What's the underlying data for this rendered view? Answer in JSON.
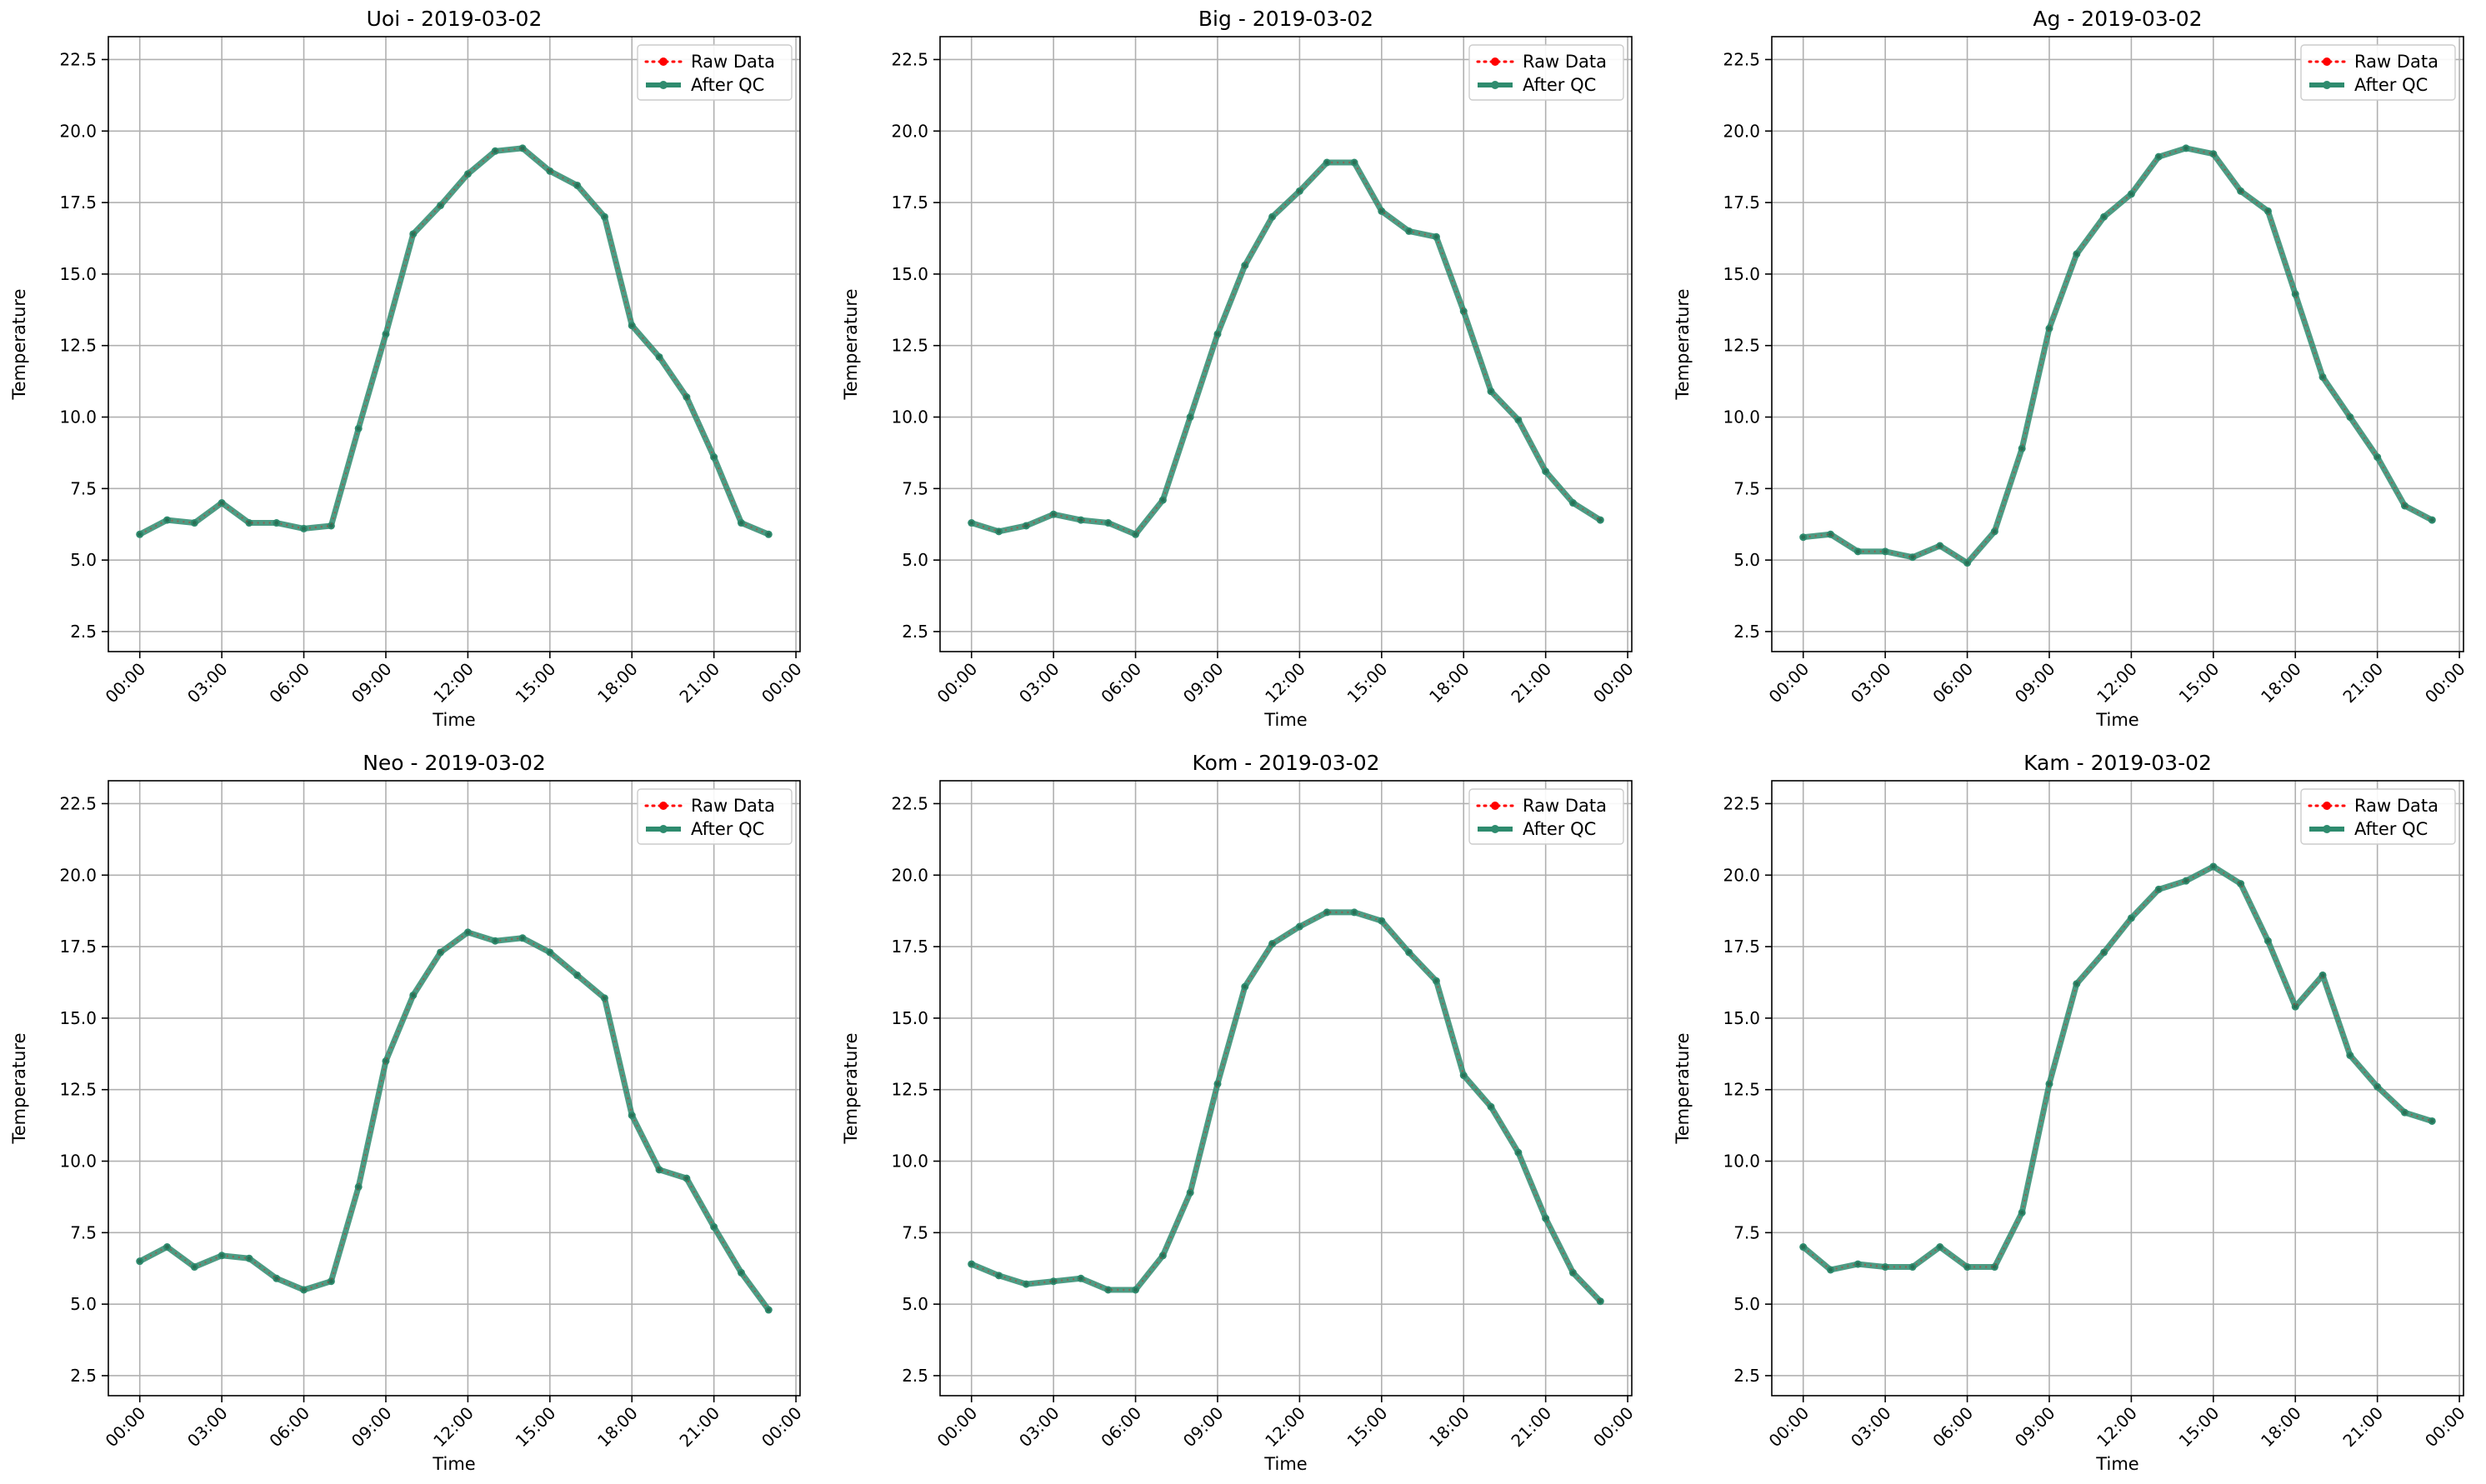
{
  "figure": {
    "background": "#ffffff"
  },
  "style": {
    "raw_color": "#ff0000",
    "qc_color": "#2e8b6e",
    "grid_color": "#b0b0b0"
  },
  "chart_data": [
    {
      "type": "line",
      "title": "Uoi - 2019-03-02",
      "xlabel": "Time",
      "ylabel": "Temperature",
      "ylim": [
        1.8,
        23.3
      ],
      "yticks": [
        "2.5",
        "5.0",
        "7.5",
        "10.0",
        "12.5",
        "15.0",
        "17.5",
        "20.0",
        "22.5"
      ],
      "xticks": [
        "00:00",
        "03:00",
        "06:00",
        "09:00",
        "12:00",
        "15:00",
        "18:00",
        "21:00",
        "00:00"
      ],
      "grid": true,
      "legend": "top-right",
      "x": [
        "00:00",
        "01:00",
        "02:00",
        "03:00",
        "04:00",
        "05:00",
        "06:00",
        "07:00",
        "08:00",
        "09:00",
        "10:00",
        "11:00",
        "12:00",
        "13:00",
        "14:00",
        "15:00",
        "16:00",
        "17:00",
        "18:00",
        "19:00",
        "20:00",
        "21:00",
        "22:00",
        "23:00"
      ],
      "series": [
        {
          "name": "Raw Data",
          "values": [
            5.9,
            6.4,
            6.3,
            7.0,
            6.3,
            6.3,
            6.1,
            6.2,
            9.6,
            12.9,
            16.4,
            17.4,
            18.5,
            19.3,
            19.4,
            18.6,
            18.1,
            17.0,
            13.2,
            12.1,
            10.7,
            8.6,
            6.3,
            5.9
          ]
        },
        {
          "name": "After QC",
          "values": [
            5.9,
            6.4,
            6.3,
            7.0,
            6.3,
            6.3,
            6.1,
            6.2,
            9.6,
            12.9,
            16.4,
            17.4,
            18.5,
            19.3,
            19.4,
            18.6,
            18.1,
            17.0,
            13.2,
            12.1,
            10.7,
            8.6,
            6.3,
            5.9
          ]
        }
      ]
    },
    {
      "type": "line",
      "title": "Big - 2019-03-02",
      "xlabel": "Time",
      "ylabel": "Temperature",
      "ylim": [
        1.8,
        23.3
      ],
      "yticks": [
        "2.5",
        "5.0",
        "7.5",
        "10.0",
        "12.5",
        "15.0",
        "17.5",
        "20.0",
        "22.5"
      ],
      "xticks": [
        "00:00",
        "03:00",
        "06:00",
        "09:00",
        "12:00",
        "15:00",
        "18:00",
        "21:00",
        "00:00"
      ],
      "grid": true,
      "legend": "top-right",
      "x": [
        "00:00",
        "01:00",
        "02:00",
        "03:00",
        "04:00",
        "05:00",
        "06:00",
        "07:00",
        "08:00",
        "09:00",
        "10:00",
        "11:00",
        "12:00",
        "13:00",
        "14:00",
        "15:00",
        "16:00",
        "17:00",
        "18:00",
        "19:00",
        "20:00",
        "21:00",
        "22:00",
        "23:00"
      ],
      "series": [
        {
          "name": "Raw Data",
          "values": [
            6.3,
            6.0,
            6.2,
            6.6,
            6.4,
            6.3,
            5.9,
            7.1,
            10.0,
            12.9,
            15.3,
            17.0,
            17.9,
            18.9,
            18.9,
            17.2,
            16.5,
            16.3,
            13.7,
            10.9,
            9.9,
            8.1,
            7.0,
            6.4
          ]
        },
        {
          "name": "After QC",
          "values": [
            6.3,
            6.0,
            6.2,
            6.6,
            6.4,
            6.3,
            5.9,
            7.1,
            10.0,
            12.9,
            15.3,
            17.0,
            17.9,
            18.9,
            18.9,
            17.2,
            16.5,
            16.3,
            13.7,
            10.9,
            9.9,
            8.1,
            7.0,
            6.4
          ]
        }
      ]
    },
    {
      "type": "line",
      "title": "Ag - 2019-03-02",
      "xlabel": "Time",
      "ylabel": "Temperature",
      "ylim": [
        1.8,
        23.3
      ],
      "yticks": [
        "2.5",
        "5.0",
        "7.5",
        "10.0",
        "12.5",
        "15.0",
        "17.5",
        "20.0",
        "22.5"
      ],
      "xticks": [
        "00:00",
        "03:00",
        "06:00",
        "09:00",
        "12:00",
        "15:00",
        "18:00",
        "21:00",
        "00:00"
      ],
      "grid": true,
      "legend": "top-right",
      "x": [
        "00:00",
        "01:00",
        "02:00",
        "03:00",
        "04:00",
        "05:00",
        "06:00",
        "07:00",
        "08:00",
        "09:00",
        "10:00",
        "11:00",
        "12:00",
        "13:00",
        "14:00",
        "15:00",
        "16:00",
        "17:00",
        "18:00",
        "19:00",
        "20:00",
        "21:00",
        "22:00",
        "23:00"
      ],
      "series": [
        {
          "name": "Raw Data",
          "values": [
            5.8,
            5.9,
            5.3,
            5.3,
            5.1,
            5.5,
            4.9,
            6.0,
            8.9,
            13.1,
            15.7,
            17.0,
            17.8,
            19.1,
            19.4,
            19.2,
            17.9,
            17.2,
            14.3,
            11.4,
            10.0,
            8.6,
            6.9,
            6.4
          ]
        },
        {
          "name": "After QC",
          "values": [
            5.8,
            5.9,
            5.3,
            5.3,
            5.1,
            5.5,
            4.9,
            6.0,
            8.9,
            13.1,
            15.7,
            17.0,
            17.8,
            19.1,
            19.4,
            19.2,
            17.9,
            17.2,
            14.3,
            11.4,
            10.0,
            8.6,
            6.9,
            6.4
          ]
        }
      ]
    },
    {
      "type": "line",
      "title": "Neo - 2019-03-02",
      "xlabel": "Time",
      "ylabel": "Temperature",
      "ylim": [
        1.8,
        23.3
      ],
      "yticks": [
        "2.5",
        "5.0",
        "7.5",
        "10.0",
        "12.5",
        "15.0",
        "17.5",
        "20.0",
        "22.5"
      ],
      "xticks": [
        "00:00",
        "03:00",
        "06:00",
        "09:00",
        "12:00",
        "15:00",
        "18:00",
        "21:00",
        "00:00"
      ],
      "grid": true,
      "legend": "top-right",
      "x": [
        "00:00",
        "01:00",
        "02:00",
        "03:00",
        "04:00",
        "05:00",
        "06:00",
        "07:00",
        "08:00",
        "09:00",
        "10:00",
        "11:00",
        "12:00",
        "13:00",
        "14:00",
        "15:00",
        "16:00",
        "17:00",
        "18:00",
        "19:00",
        "20:00",
        "21:00",
        "22:00",
        "23:00"
      ],
      "series": [
        {
          "name": "Raw Data",
          "values": [
            6.5,
            7.0,
            6.3,
            6.7,
            6.6,
            5.9,
            5.5,
            5.8,
            9.1,
            13.5,
            15.8,
            17.3,
            18.0,
            17.7,
            17.8,
            17.3,
            16.5,
            15.7,
            11.6,
            9.7,
            9.4,
            7.7,
            6.1,
            4.8
          ]
        },
        {
          "name": "After QC",
          "values": [
            6.5,
            7.0,
            6.3,
            6.7,
            6.6,
            5.9,
            5.5,
            5.8,
            9.1,
            13.5,
            15.8,
            17.3,
            18.0,
            17.7,
            17.8,
            17.3,
            16.5,
            15.7,
            11.6,
            9.7,
            9.4,
            7.7,
            6.1,
            4.8
          ]
        }
      ]
    },
    {
      "type": "line",
      "title": "Kom - 2019-03-02",
      "xlabel": "Time",
      "ylabel": "Temperature",
      "ylim": [
        1.8,
        23.3
      ],
      "yticks": [
        "2.5",
        "5.0",
        "7.5",
        "10.0",
        "12.5",
        "15.0",
        "17.5",
        "20.0",
        "22.5"
      ],
      "xticks": [
        "00:00",
        "03:00",
        "06:00",
        "09:00",
        "12:00",
        "15:00",
        "18:00",
        "21:00",
        "00:00"
      ],
      "grid": true,
      "legend": "top-right",
      "x": [
        "00:00",
        "01:00",
        "02:00",
        "03:00",
        "04:00",
        "05:00",
        "06:00",
        "07:00",
        "08:00",
        "09:00",
        "10:00",
        "11:00",
        "12:00",
        "13:00",
        "14:00",
        "15:00",
        "16:00",
        "17:00",
        "18:00",
        "19:00",
        "20:00",
        "21:00",
        "22:00",
        "23:00"
      ],
      "series": [
        {
          "name": "Raw Data",
          "values": [
            6.4,
            6.0,
            5.7,
            5.8,
            5.9,
            5.5,
            5.5,
            6.7,
            8.9,
            12.7,
            16.1,
            17.6,
            18.2,
            18.7,
            18.7,
            18.4,
            17.3,
            16.3,
            13.0,
            11.9,
            10.3,
            8.0,
            6.1,
            5.1
          ]
        },
        {
          "name": "After QC",
          "values": [
            6.4,
            6.0,
            5.7,
            5.8,
            5.9,
            5.5,
            5.5,
            6.7,
            8.9,
            12.7,
            16.1,
            17.6,
            18.2,
            18.7,
            18.7,
            18.4,
            17.3,
            16.3,
            13.0,
            11.9,
            10.3,
            8.0,
            6.1,
            5.1
          ]
        }
      ]
    },
    {
      "type": "line",
      "title": "Kam - 2019-03-02",
      "xlabel": "Time",
      "ylabel": "Temperature",
      "ylim": [
        1.8,
        23.3
      ],
      "yticks": [
        "2.5",
        "5.0",
        "7.5",
        "10.0",
        "12.5",
        "15.0",
        "17.5",
        "20.0",
        "22.5"
      ],
      "xticks": [
        "00:00",
        "03:00",
        "06:00",
        "09:00",
        "12:00",
        "15:00",
        "18:00",
        "21:00",
        "00:00"
      ],
      "grid": true,
      "legend": "top-right",
      "x": [
        "00:00",
        "01:00",
        "02:00",
        "03:00",
        "04:00",
        "05:00",
        "06:00",
        "07:00",
        "08:00",
        "09:00",
        "10:00",
        "11:00",
        "12:00",
        "13:00",
        "14:00",
        "15:00",
        "16:00",
        "17:00",
        "18:00",
        "19:00",
        "20:00",
        "21:00",
        "22:00",
        "23:00"
      ],
      "series": [
        {
          "name": "Raw Data",
          "values": [
            7.0,
            6.2,
            6.4,
            6.3,
            6.3,
            7.0,
            6.3,
            6.3,
            8.2,
            12.7,
            16.2,
            17.3,
            18.5,
            19.5,
            19.8,
            20.3,
            19.7,
            17.7,
            15.4,
            16.5,
            13.7,
            12.6,
            11.7,
            11.4
          ]
        },
        {
          "name": "After QC",
          "values": [
            7.0,
            6.2,
            6.4,
            6.3,
            6.3,
            7.0,
            6.3,
            6.3,
            8.2,
            12.7,
            16.2,
            17.3,
            18.5,
            19.5,
            19.8,
            20.3,
            19.7,
            17.7,
            15.4,
            16.5,
            13.7,
            12.6,
            11.7,
            11.4
          ]
        }
      ]
    }
  ]
}
